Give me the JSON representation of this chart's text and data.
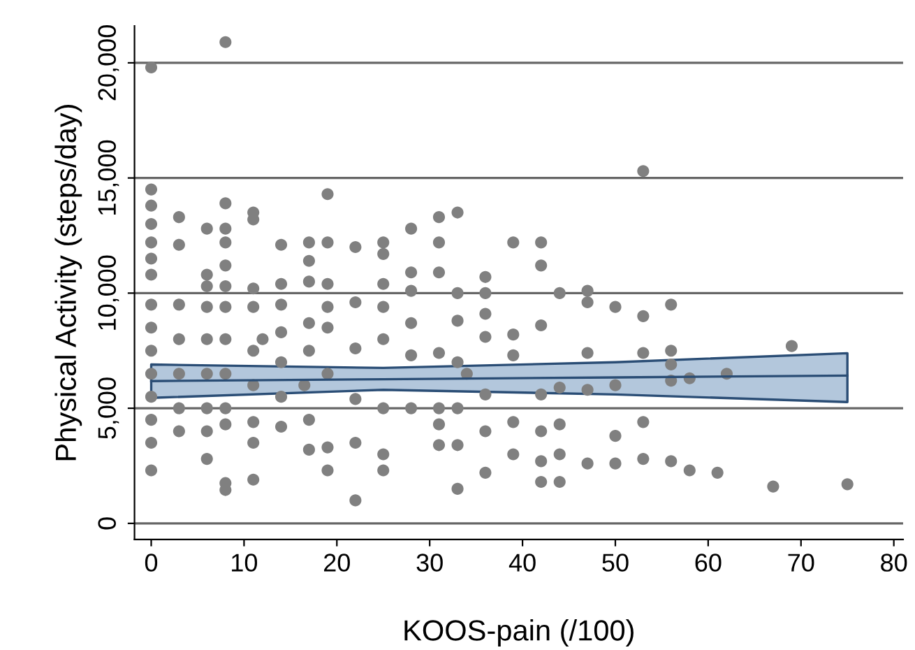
{
  "chart_data": {
    "type": "scatter",
    "xlabel": "KOOS-pain (/100)",
    "ylabel": "Physical Activity (steps/day)",
    "xlim": [
      -1.8,
      81
    ],
    "ylim": [
      -700,
      21600
    ],
    "xticks": [
      0,
      10,
      20,
      30,
      40,
      50,
      60,
      70,
      80
    ],
    "yticks": [
      0,
      {
        "value": 5000,
        "label": "5,000"
      },
      {
        "value": 10000,
        "label": "10,000"
      },
      {
        "value": 15000,
        "label": "15,000"
      },
      {
        "value": 20000,
        "label": "20,000"
      }
    ],
    "grid": "y",
    "series": [
      {
        "marker": "circle",
        "color": "#808080",
        "x": [
          0,
          0,
          0,
          0,
          0,
          0,
          0,
          0,
          0,
          0,
          0,
          0,
          0,
          0,
          0,
          3,
          3,
          3,
          3,
          3,
          3,
          3,
          6,
          6,
          6,
          6,
          6,
          6,
          6,
          6,
          6,
          8,
          8,
          8,
          8,
          8,
          8,
          8,
          8,
          8,
          8,
          8,
          8,
          8,
          11,
          11,
          11,
          11,
          11,
          11,
          11,
          11,
          11,
          12,
          14,
          14,
          14,
          14,
          14,
          14,
          14,
          17,
          17,
          17,
          17,
          17,
          17,
          17,
          16.5,
          19,
          19,
          19,
          19,
          19,
          19,
          19,
          19,
          22,
          22,
          22,
          22,
          22,
          22,
          25,
          25,
          25,
          25,
          25,
          25,
          25,
          25,
          28,
          28,
          28,
          28,
          28,
          28,
          31,
          31,
          31,
          31,
          31,
          31,
          31,
          33,
          33,
          33,
          33,
          33,
          33,
          33,
          34,
          36,
          36,
          36,
          36,
          36,
          36,
          36,
          39,
          39,
          39,
          39,
          39,
          42,
          42,
          42,
          42,
          42,
          42,
          42,
          44,
          44,
          44,
          44,
          44,
          47,
          47,
          47,
          47,
          47,
          50,
          50,
          50,
          50,
          53,
          53,
          53,
          53,
          53,
          56,
          56,
          56,
          56,
          56,
          58,
          58,
          61,
          62,
          67,
          69,
          75
        ],
        "values": [
          19800,
          14500,
          13800,
          13000,
          12200,
          11500,
          10800,
          9500,
          8500,
          7500,
          6500,
          5500,
          4500,
          3500,
          2300,
          13300,
          12100,
          9500,
          8000,
          6500,
          5000,
          4000,
          12800,
          10800,
          10300,
          9400,
          8000,
          6500,
          5000,
          4000,
          2800,
          20900,
          13900,
          12800,
          12200,
          11200,
          10300,
          9400,
          8000,
          6500,
          5000,
          4300,
          1750,
          1450,
          13500,
          13200,
          10200,
          9400,
          7500,
          6000,
          4400,
          3500,
          1900,
          8000,
          12100,
          10400,
          9500,
          8300,
          7000,
          5500,
          4200,
          12200,
          11400,
          10500,
          8700,
          7500,
          4500,
          3200,
          6000,
          14300,
          12200,
          10400,
          9400,
          8500,
          6500,
          3300,
          2300,
          12000,
          9600,
          7600,
          5400,
          3500,
          1000,
          12200,
          11700,
          10400,
          9400,
          8000,
          5000,
          3000,
          2300,
          12800,
          10900,
          10100,
          8700,
          7300,
          5000,
          13300,
          12200,
          10900,
          7400,
          5000,
          4300,
          3400,
          13500,
          10000,
          8800,
          7000,
          5000,
          3400,
          1500,
          6500,
          10700,
          10000,
          9100,
          8100,
          5600,
          4000,
          2200,
          12200,
          8200,
          7300,
          4400,
          3000,
          12200,
          11200,
          8600,
          5600,
          4000,
          2700,
          1800,
          10000,
          5900,
          4300,
          3000,
          1800,
          10100,
          9600,
          7400,
          5800,
          2600,
          9400,
          6000,
          3800,
          2600,
          15300,
          9000,
          7400,
          4400,
          2800,
          9500,
          7500,
          6900,
          6200,
          2700,
          6300,
          2300,
          2200,
          6500,
          1600,
          7700,
          1700
        ]
      },
      {
        "type": "line",
        "marker": "none",
        "color": "#2a4d75",
        "x": [
          0,
          25,
          50,
          75
        ],
        "values": [
          6180,
          6260,
          6340,
          6420
        ],
        "lower": [
          5450,
          5800,
          5600,
          5270
        ],
        "upper": [
          6900,
          6750,
          7000,
          7390
        ]
      }
    ]
  }
}
